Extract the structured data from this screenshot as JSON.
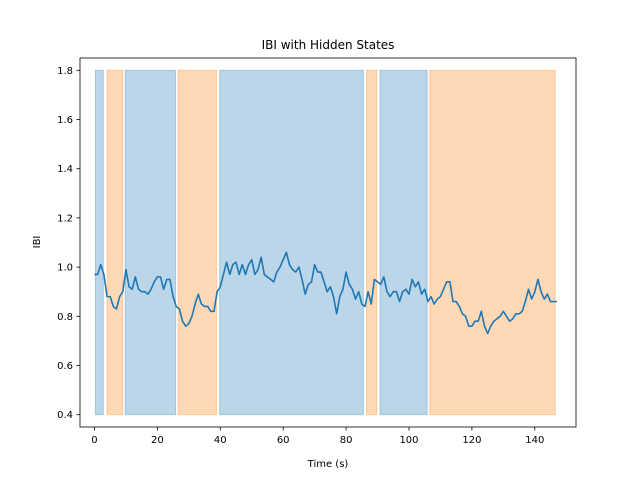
{
  "chart_data": {
    "type": "line",
    "title": "IBI with Hidden States",
    "xlabel": "Time (s)",
    "ylabel": "IBI",
    "xlim": [
      -4.6,
      153.1
    ],
    "ylim": [
      0.35,
      1.85
    ],
    "xticks": [
      0,
      20,
      40,
      60,
      80,
      100,
      120,
      140
    ],
    "yticks": [
      0.4,
      0.6,
      0.8,
      1.0,
      1.2,
      1.4,
      1.6,
      1.8
    ],
    "grid": false,
    "legend": "none",
    "colors": {
      "line": "#1f77b4",
      "state0": "#1f77b4",
      "state1": "#ff7f0e"
    },
    "state_fill_range": [
      0.4,
      1.8
    ],
    "state_regions": [
      {
        "state": 0,
        "x0": 0.3,
        "x1": 2.8
      },
      {
        "state": 1,
        "x0": 4.0,
        "x1": 9.0
      },
      {
        "state": 0,
        "x0": 9.8,
        "x1": 25.8
      },
      {
        "state": 1,
        "x0": 26.6,
        "x1": 38.8
      },
      {
        "state": 0,
        "x0": 39.8,
        "x1": 85.5
      },
      {
        "state": 1,
        "x0": 86.5,
        "x1": 89.8
      },
      {
        "state": 0,
        "x0": 90.8,
        "x1": 105.8
      },
      {
        "state": 1,
        "x0": 106.6,
        "x1": 146.5
      }
    ],
    "series": [
      {
        "x": [
          0,
          1,
          2,
          3,
          4,
          5,
          6,
          7,
          8,
          9,
          10,
          11,
          12,
          13,
          14,
          15,
          16,
          17,
          18,
          19,
          20,
          21,
          22,
          23,
          24,
          25,
          26,
          27,
          28,
          29,
          30,
          31,
          32,
          33,
          34,
          35,
          36,
          37,
          38,
          39,
          40,
          41,
          42,
          43,
          44,
          45,
          46,
          47,
          48,
          49,
          50,
          51,
          52,
          53,
          54,
          55,
          56,
          57,
          58,
          59,
          60,
          61,
          62,
          63,
          64,
          65,
          66,
          67,
          68,
          69,
          70,
          71,
          72,
          73,
          74,
          75,
          76,
          77,
          78,
          79,
          80,
          81,
          82,
          83,
          84,
          85,
          86,
          87,
          88,
          89,
          90,
          91,
          92,
          93,
          94,
          95,
          96,
          97,
          98,
          99,
          100,
          101,
          102,
          103,
          104,
          105,
          106,
          107,
          108,
          109,
          110,
          111,
          112,
          113,
          114,
          115,
          116,
          117,
          118,
          119,
          120,
          121,
          122,
          123,
          124,
          125,
          126,
          127,
          128,
          129,
          130,
          131,
          132,
          133,
          134,
          135,
          136,
          137,
          138,
          139,
          140,
          141,
          142,
          143,
          144,
          145,
          146,
          147
        ],
        "values": [
          0.97,
          0.97,
          1.01,
          0.97,
          0.88,
          0.88,
          0.84,
          0.83,
          0.88,
          0.9,
          0.99,
          0.92,
          0.91,
          0.96,
          0.91,
          0.9,
          0.9,
          0.89,
          0.91,
          0.94,
          0.96,
          0.96,
          0.91,
          0.95,
          0.95,
          0.88,
          0.84,
          0.83,
          0.78,
          0.76,
          0.77,
          0.8,
          0.85,
          0.89,
          0.85,
          0.84,
          0.84,
          0.82,
          0.82,
          0.9,
          0.92,
          0.97,
          1.02,
          0.97,
          1.01,
          1.02,
          0.97,
          1.01,
          0.97,
          1.01,
          1.03,
          0.97,
          0.99,
          1.04,
          0.97,
          0.96,
          0.95,
          0.94,
          0.98,
          1.0,
          1.03,
          1.06,
          1.01,
          0.99,
          0.98,
          1.0,
          0.95,
          0.89,
          0.93,
          0.94,
          1.01,
          0.98,
          0.98,
          0.94,
          0.9,
          0.92,
          0.88,
          0.81,
          0.88,
          0.91,
          0.98,
          0.93,
          0.91,
          0.87,
          0.9,
          0.85,
          0.84,
          0.9,
          0.85,
          0.95,
          0.94,
          0.93,
          0.96,
          0.9,
          0.88,
          0.9,
          0.9,
          0.86,
          0.9,
          0.91,
          0.89,
          0.95,
          0.92,
          0.94,
          0.89,
          0.91,
          0.86,
          0.88,
          0.85,
          0.87,
          0.88,
          0.91,
          0.94,
          0.94,
          0.86,
          0.86,
          0.84,
          0.81,
          0.8,
          0.76,
          0.76,
          0.78,
          0.78,
          0.82,
          0.76,
          0.73,
          0.76,
          0.78,
          0.79,
          0.8,
          0.82,
          0.8,
          0.78,
          0.79,
          0.81,
          0.81,
          0.82,
          0.86,
          0.91,
          0.87,
          0.9,
          0.95,
          0.9,
          0.87,
          0.89,
          0.86,
          0.86,
          0.86
        ]
      }
    ]
  }
}
